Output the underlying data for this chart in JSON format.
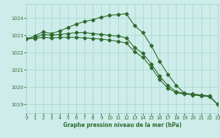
{
  "title": "Graphe pression niveau de la mer (hPa)",
  "bg_color": "#ceecea",
  "grid_color": "#a8d8d0",
  "line_color": "#2d6b2d",
  "xlim": [
    0,
    23
  ],
  "ylim": [
    1018.5,
    1024.8
  ],
  "yticks": [
    1019,
    1020,
    1021,
    1022,
    1023,
    1024
  ],
  "xticks": [
    0,
    1,
    2,
    3,
    4,
    5,
    6,
    7,
    8,
    9,
    10,
    11,
    12,
    13,
    14,
    15,
    16,
    17,
    18,
    19,
    20,
    21,
    22,
    23
  ],
  "line1": {
    "x": [
      0,
      1,
      2,
      3,
      4,
      5,
      6,
      7,
      8,
      9,
      10,
      11,
      12,
      13,
      14,
      15,
      16,
      17,
      18,
      19,
      20,
      21,
      22,
      23
    ],
    "y": [
      1022.8,
      1022.95,
      1023.2,
      1023.1,
      1023.25,
      1023.45,
      1023.65,
      1023.8,
      1023.9,
      1024.05,
      1024.15,
      1024.2,
      1024.25,
      1023.55,
      1023.15,
      1022.4,
      1021.5,
      1020.75,
      1020.1,
      1019.65,
      1019.55,
      1019.5,
      1019.45,
      1019.0
    ]
  },
  "line2": {
    "x": [
      0,
      1,
      2,
      3,
      4,
      5,
      6,
      7,
      8,
      9,
      10,
      11,
      12,
      13,
      14,
      15,
      16,
      17,
      18,
      19,
      20,
      21,
      22,
      23
    ],
    "y": [
      1022.8,
      1022.85,
      1023.05,
      1023.0,
      1023.05,
      1023.1,
      1023.15,
      1023.15,
      1023.1,
      1023.05,
      1023.0,
      1022.95,
      1022.85,
      1022.3,
      1021.95,
      1021.35,
      1020.65,
      1020.1,
      1019.75,
      1019.65,
      1019.6,
      1019.55,
      1019.5,
      1019.0
    ]
  },
  "line3": {
    "x": [
      0,
      1,
      2,
      3,
      4,
      5,
      6,
      7,
      8,
      9,
      10,
      11,
      12,
      13,
      14,
      15,
      16,
      17,
      18,
      19,
      20,
      21,
      22,
      23
    ],
    "y": [
      1022.8,
      1022.82,
      1022.88,
      1022.85,
      1022.87,
      1022.88,
      1022.87,
      1022.85,
      1022.82,
      1022.78,
      1022.72,
      1022.65,
      1022.55,
      1022.05,
      1021.72,
      1021.15,
      1020.45,
      1019.95,
      1019.68,
      1019.6,
      1019.58,
      1019.53,
      1019.48,
      1019.0
    ]
  }
}
